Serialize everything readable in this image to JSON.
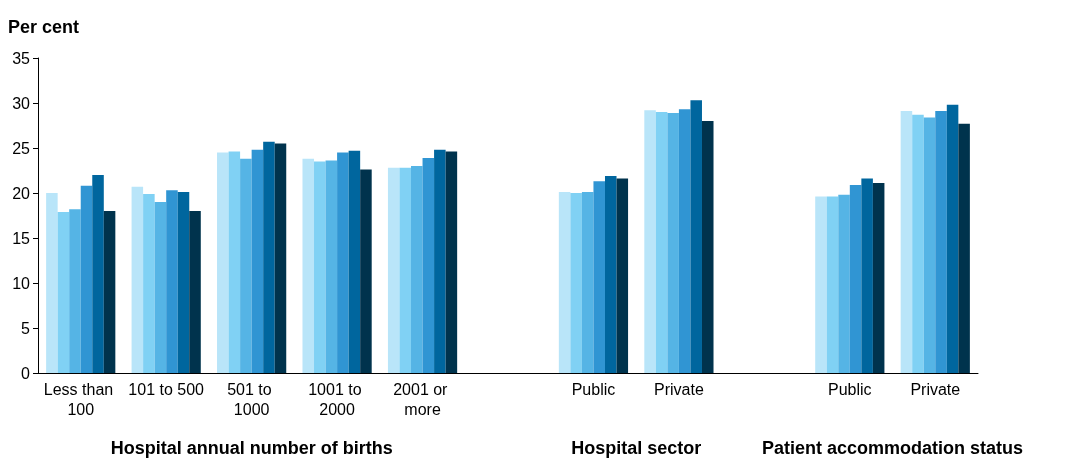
{
  "chart_data": {
    "type": "bar",
    "ylabel": "Per cent",
    "categories": [
      "Less than 100",
      "101 to 500",
      "501 to 1000",
      "1001 to 2000",
      "2001 or more",
      null,
      "Public",
      "Private",
      null,
      "Public",
      "Private"
    ],
    "series": [
      {
        "color": "#b9e5f9",
        "values": [
          20.0,
          20.7,
          24.5,
          23.8,
          22.8,
          null,
          20.1,
          29.2,
          null,
          19.6,
          29.1
        ]
      },
      {
        "color": "#80d1f4",
        "values": [
          17.9,
          19.9,
          24.6,
          23.5,
          22.8,
          null,
          20.0,
          29.0,
          null,
          19.6,
          28.7
        ]
      },
      {
        "color": "#55b4e5",
        "values": [
          18.2,
          19.0,
          23.8,
          23.6,
          23.0,
          null,
          20.1,
          28.9,
          null,
          19.8,
          28.4
        ]
      },
      {
        "color": "#3095d3",
        "values": [
          20.8,
          20.3,
          24.8,
          24.5,
          23.9,
          null,
          21.3,
          29.3,
          null,
          20.9,
          29.1
        ]
      },
      {
        "color": "#00669e",
        "values": [
          22.0,
          20.1,
          25.7,
          24.7,
          24.8,
          null,
          21.9,
          30.3,
          null,
          21.6,
          29.8
        ]
      },
      {
        "color": "#00334d",
        "values": [
          18.0,
          18.0,
          25.5,
          22.6,
          24.6,
          null,
          21.6,
          28.0,
          null,
          21.1,
          27.7
        ]
      }
    ],
    "ylim": [
      0,
      35
    ],
    "yticks": [
      0,
      5,
      10,
      15,
      20,
      25,
      30,
      35
    ],
    "grid": false,
    "annotations": [
      "Hospital annual number of births",
      "Hospital sector",
      "Patient accommodation status"
    ]
  }
}
